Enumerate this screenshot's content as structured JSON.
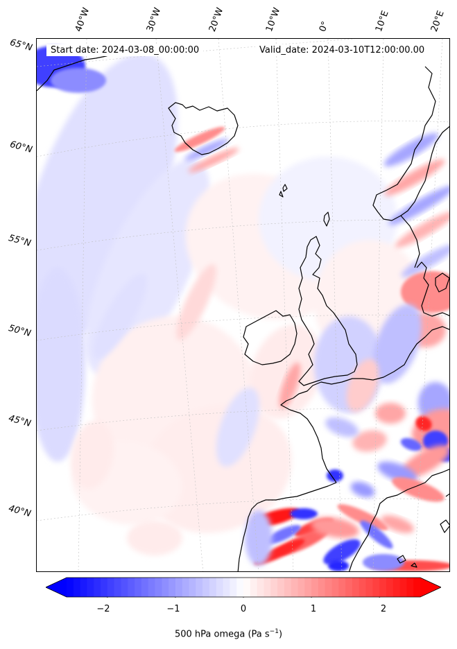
{
  "header": {
    "start_date": "Start date: 2024-03-08_00:00:00",
    "valid_date": "Valid_date: 2024-03-10T12:00:00.00"
  },
  "lon_labels": [
    "40°W",
    "30°W",
    "20°W",
    "10°W",
    "0°",
    "10°E",
    "20°E"
  ],
  "lat_labels": [
    "65°N",
    "60°N",
    "55°N",
    "50°N",
    "45°N",
    "40°N"
  ],
  "colorbar": {
    "ticks": [
      "−2",
      "−1",
      "0",
      "1",
      "2"
    ],
    "label_text": "500 hPa omega (Pa s",
    "label_sup": "−1",
    "label_close": ")",
    "min": -2.6,
    "max": 2.6,
    "cmap": "bwr",
    "extend": "both"
  },
  "colors": {
    "negative": "#0000ff",
    "neutral": "#ffffff",
    "positive": "#ff0000",
    "coastline": "#000000",
    "gridline": "#bfbfbf"
  }
}
